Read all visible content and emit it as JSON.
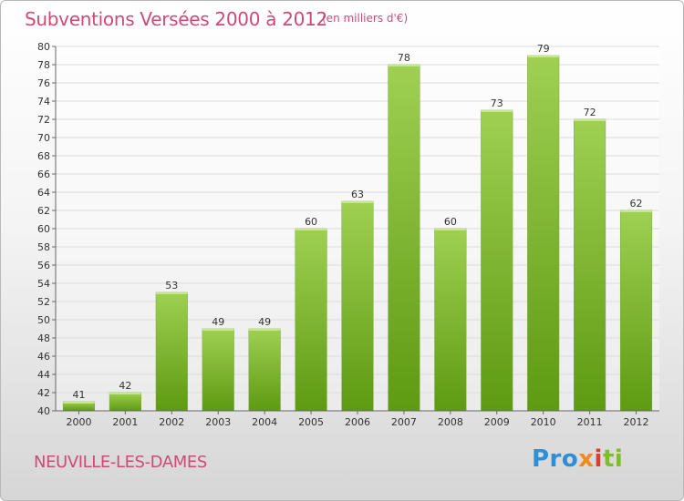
{
  "header": {
    "title": "Subventions Versées 2000 à 2012",
    "subtitle": "(en milliers d'€)"
  },
  "footer": {
    "commune": "NEUVILLE-LES-DAMES",
    "logo_parts": [
      "Pro",
      "x",
      "i",
      "ti"
    ]
  },
  "colors": {
    "title": "#d04a77",
    "bar_top": "#9fd052",
    "bar_bottom": "#5e9a12",
    "grid": "#dcdcdc",
    "axis": "#666666"
  },
  "chart_data": {
    "type": "bar",
    "title": "Subventions Versées 2000 à 2012",
    "subtitle": "(en milliers d'€)",
    "categories": [
      "2000",
      "2001",
      "2002",
      "2003",
      "2004",
      "2005",
      "2006",
      "2007",
      "2008",
      "2009",
      "2010",
      "2011",
      "2012"
    ],
    "values": [
      41,
      42,
      53,
      49,
      49,
      60,
      63,
      78,
      60,
      73,
      79,
      72,
      62
    ],
    "ylim": [
      40,
      80
    ],
    "ytick_step": 2,
    "grid": true,
    "data_labels": true
  }
}
